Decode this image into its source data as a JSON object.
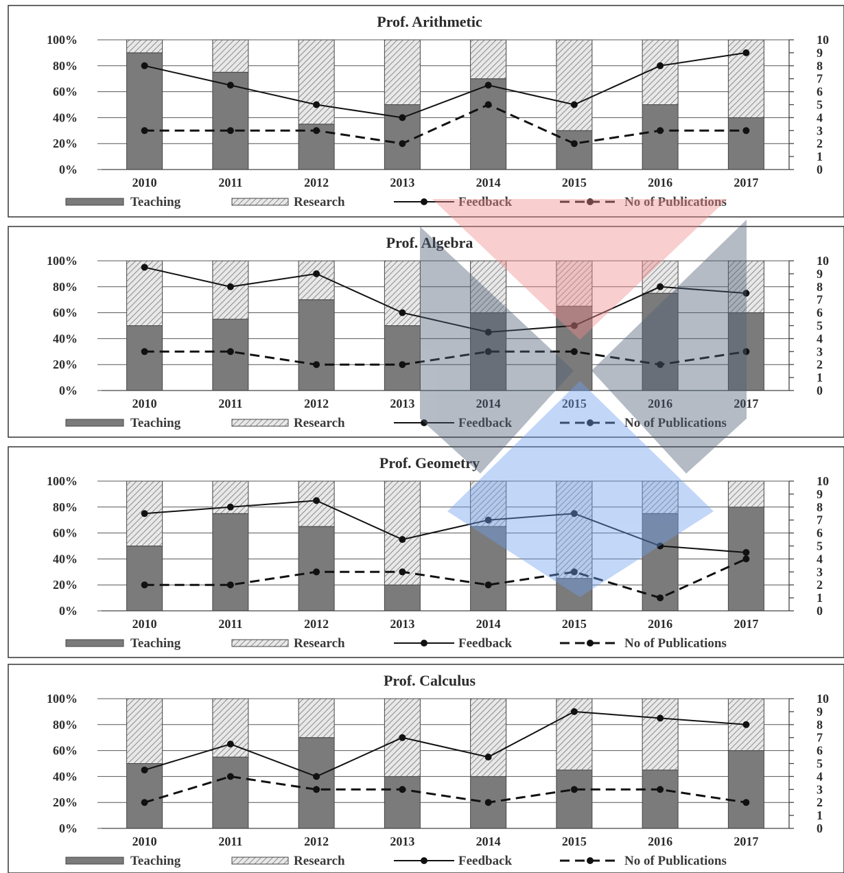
{
  "legend": {
    "teaching": "Teaching",
    "research": "Research",
    "feedback": "Feedback",
    "publications": "No of Publications"
  },
  "colors": {
    "teaching": "#7b7b7b",
    "research_hatch": "#8a8a8a",
    "lines": "#111111",
    "watermark_red": "#f28b8b",
    "watermark_grey": "#5a6a80",
    "watermark_blue": "#6f9ff0"
  },
  "chart_data": [
    {
      "type": "bar",
      "title": "Prof. Arithmetic",
      "categories": [
        "2010",
        "2011",
        "2012",
        "2013",
        "2014",
        "2015",
        "2016",
        "2017"
      ],
      "y_ticks": [
        "0%",
        "20%",
        "40%",
        "60%",
        "80%",
        "100%"
      ],
      "y2_ticks": [
        "0",
        "1",
        "2",
        "3",
        "4",
        "5",
        "6",
        "7",
        "8",
        "9",
        "10"
      ],
      "ylim": [
        0,
        100
      ],
      "y2lim": [
        0,
        10
      ],
      "stacked": true,
      "series": [
        {
          "name": "Teaching",
          "axis": "left",
          "values": [
            90,
            75,
            35,
            50,
            70,
            30,
            50,
            40
          ]
        },
        {
          "name": "Research",
          "axis": "left",
          "values": [
            10,
            25,
            65,
            50,
            30,
            70,
            50,
            60
          ]
        },
        {
          "name": "Feedback",
          "axis": "right",
          "type": "line",
          "values": [
            8,
            6.5,
            5,
            4,
            6.5,
            5,
            8,
            9
          ]
        },
        {
          "name": "No of Publications",
          "axis": "right",
          "type": "line",
          "values": [
            3,
            3,
            3,
            2,
            5,
            2,
            3,
            3
          ]
        }
      ]
    },
    {
      "type": "bar",
      "title": "Prof. Algebra",
      "categories": [
        "2010",
        "2011",
        "2012",
        "2013",
        "2014",
        "2015",
        "2016",
        "2017"
      ],
      "y_ticks": [
        "0%",
        "20%",
        "40%",
        "60%",
        "80%",
        "100%"
      ],
      "y2_ticks": [
        "0",
        "1",
        "2",
        "3",
        "4",
        "5",
        "6",
        "7",
        "8",
        "9",
        "10"
      ],
      "ylim": [
        0,
        100
      ],
      "y2lim": [
        0,
        10
      ],
      "stacked": true,
      "series": [
        {
          "name": "Teaching",
          "axis": "left",
          "values": [
            50,
            55,
            70,
            50,
            60,
            65,
            75,
            60
          ]
        },
        {
          "name": "Research",
          "axis": "left",
          "values": [
            50,
            45,
            30,
            50,
            40,
            35,
            25,
            40
          ]
        },
        {
          "name": "Feedback",
          "axis": "right",
          "type": "line",
          "values": [
            9.5,
            8,
            9,
            6,
            4.5,
            5,
            8,
            7.5
          ]
        },
        {
          "name": "No of Publications",
          "axis": "right",
          "type": "line",
          "values": [
            3,
            3,
            2,
            2,
            3,
            3,
            2,
            3
          ]
        }
      ]
    },
    {
      "type": "bar",
      "title": "Prof. Geometry",
      "categories": [
        "2010",
        "2011",
        "2012",
        "2013",
        "2014",
        "2015",
        "2016",
        "2017"
      ],
      "y_ticks": [
        "0%",
        "20%",
        "40%",
        "60%",
        "80%",
        "100%"
      ],
      "y2_ticks": [
        "0",
        "1",
        "2",
        "3",
        "4",
        "5",
        "6",
        "7",
        "8",
        "9",
        "10"
      ],
      "ylim": [
        0,
        100
      ],
      "y2lim": [
        0,
        10
      ],
      "stacked": true,
      "series": [
        {
          "name": "Teaching",
          "axis": "left",
          "values": [
            50,
            75,
            65,
            20,
            65,
            25,
            75,
            80
          ]
        },
        {
          "name": "Research",
          "axis": "left",
          "values": [
            50,
            25,
            35,
            80,
            35,
            75,
            25,
            20
          ]
        },
        {
          "name": "Feedback",
          "axis": "right",
          "type": "line",
          "values": [
            7.5,
            8,
            8.5,
            5.5,
            7,
            7.5,
            5,
            4.5
          ]
        },
        {
          "name": "No of Publications",
          "axis": "right",
          "type": "line",
          "values": [
            2,
            2,
            3,
            3,
            2,
            3,
            1,
            4
          ]
        }
      ]
    },
    {
      "type": "bar",
      "title": "Prof. Calculus",
      "categories": [
        "2010",
        "2011",
        "2012",
        "2013",
        "2014",
        "2015",
        "2016",
        "2017"
      ],
      "y_ticks": [
        "0%",
        "20%",
        "40%",
        "60%",
        "80%",
        "100%"
      ],
      "y2_ticks": [
        "0",
        "1",
        "2",
        "3",
        "4",
        "5",
        "6",
        "7",
        "8",
        "9",
        "10"
      ],
      "ylim": [
        0,
        100
      ],
      "y2lim": [
        0,
        10
      ],
      "stacked": true,
      "series": [
        {
          "name": "Teaching",
          "axis": "left",
          "values": [
            50,
            55,
            70,
            40,
            40,
            45,
            45,
            60
          ]
        },
        {
          "name": "Research",
          "axis": "left",
          "values": [
            50,
            45,
            30,
            60,
            60,
            55,
            55,
            40
          ]
        },
        {
          "name": "Feedback",
          "axis": "right",
          "type": "line",
          "values": [
            4.5,
            6.5,
            4,
            7,
            5.5,
            9,
            8.5,
            8
          ]
        },
        {
          "name": "No of Publications",
          "axis": "right",
          "type": "line",
          "values": [
            2,
            4,
            3,
            3,
            2,
            3,
            3,
            2
          ]
        }
      ]
    }
  ]
}
